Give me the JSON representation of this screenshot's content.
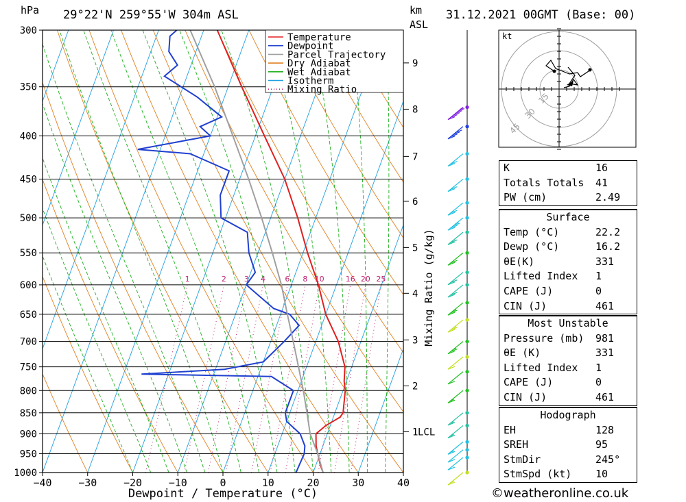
{
  "header": {
    "pressure_unit": "hPa",
    "location": "29°22'N 259°55'W 304m ASL",
    "km_label": "km",
    "asl_label": "ASL",
    "datetime": "31.12.2021 00GMT (Base: 00)"
  },
  "chart_data": {
    "type": "line",
    "title": "29°22'N 259°55'W 304m ASL",
    "xlabel": "Dewpoint / Temperature (°C)",
    "ylabel": "hPa",
    "right_axis_label": "Mixing Ratio (g/kg)",
    "xlim": [
      -40,
      40
    ],
    "ylim": [
      1000,
      300
    ],
    "y_scale": "log (skew-T)",
    "x_ticks": [
      "−40",
      "−30",
      "−20",
      "−10",
      "0",
      "10",
      "20",
      "30",
      "40"
    ],
    "pressure_levels": [
      "300",
      "350",
      "400",
      "450",
      "500",
      "550",
      "600",
      "650",
      "700",
      "750",
      "800",
      "850",
      "900",
      "950",
      "1000"
    ],
    "height_km": [
      {
        "label": "9",
        "p": 328
      },
      {
        "label": "8",
        "p": 372
      },
      {
        "label": "7",
        "p": 423
      },
      {
        "label": "6",
        "p": 478
      },
      {
        "label": "5",
        "p": 542
      },
      {
        "label": "4",
        "p": 614
      },
      {
        "label": "3",
        "p": 697
      },
      {
        "label": "2",
        "p": 790
      },
      {
        "label": "1",
        "p": 895
      }
    ],
    "lcl_label": "LCL",
    "lcl_p": 895,
    "mixing_ratio_labels": [
      "1",
      "2",
      "3",
      "4",
      "6",
      "8",
      "10",
      "16",
      "20",
      "25"
    ],
    "legend": [
      "Temperature",
      "Dewpoint",
      "Parcel Trajectory",
      "Dry Adiabat",
      "Wet Adiabat",
      "Isotherm",
      "Mixing Ratio"
    ],
    "legend_placement": "top-right",
    "colors": {
      "temperature": "#e02020",
      "dewpoint": "#2040d0",
      "parcel": "#a0a0a0",
      "dry_adiabat": "#e08020",
      "wet_adiabat": "#20b020",
      "isotherm": "#20a0e0",
      "mixing_ratio": "#c02070"
    },
    "series": [
      {
        "name": "Temperature",
        "points": [
          [
            1000,
            22.2
          ],
          [
            980,
            21
          ],
          [
            950,
            19.5
          ],
          [
            930,
            18.5
          ],
          [
            900,
            17.5
          ],
          [
            880,
            19
          ],
          [
            860,
            21.5
          ],
          [
            850,
            21.8
          ],
          [
            800,
            20.5
          ],
          [
            780,
            19.5
          ],
          [
            750,
            18.5
          ],
          [
            700,
            15
          ],
          [
            650,
            10
          ],
          [
            600,
            6
          ],
          [
            550,
            1
          ],
          [
            500,
            -4
          ],
          [
            450,
            -10
          ],
          [
            400,
            -18
          ],
          [
            350,
            -27
          ],
          [
            300,
            -37
          ]
        ]
      },
      {
        "name": "Dewpoint",
        "points": [
          [
            1000,
            16.2
          ],
          [
            950,
            16.5
          ],
          [
            930,
            16
          ],
          [
            900,
            14
          ],
          [
            870,
            10
          ],
          [
            850,
            9
          ],
          [
            830,
            9
          ],
          [
            800,
            9
          ],
          [
            770,
            3
          ],
          [
            765,
            -26
          ],
          [
            755,
            -8
          ],
          [
            740,
            0
          ],
          [
            700,
            3
          ],
          [
            670,
            5
          ],
          [
            650,
            2
          ],
          [
            640,
            -2
          ],
          [
            600,
            -10
          ],
          [
            580,
            -9
          ],
          [
            550,
            -12
          ],
          [
            520,
            -14
          ],
          [
            500,
            -21
          ],
          [
            470,
            -23
          ],
          [
            440,
            -23
          ],
          [
            420,
            -33
          ],
          [
            415,
            -45
          ],
          [
            400,
            -30
          ],
          [
            390,
            -33
          ],
          [
            380,
            -29
          ],
          [
            360,
            -36
          ],
          [
            340,
            -45
          ],
          [
            330,
            -43
          ],
          [
            318,
            -46
          ],
          [
            305,
            -47
          ],
          [
            300,
            -46
          ]
        ]
      },
      {
        "name": "Parcel Trajectory",
        "points": [
          [
            1000,
            22.2
          ],
          [
            950,
            19.5
          ],
          [
            900,
            16.2
          ],
          [
            850,
            13.8
          ],
          [
            800,
            11.2
          ],
          [
            750,
            8.2
          ],
          [
            700,
            5
          ],
          [
            650,
            1.5
          ],
          [
            600,
            -2.2
          ],
          [
            550,
            -6.8
          ],
          [
            500,
            -12
          ],
          [
            450,
            -18
          ],
          [
            400,
            -25
          ],
          [
            350,
            -33
          ],
          [
            300,
            -43
          ]
        ]
      }
    ],
    "wind_barbs": [
      {
        "p": 1000,
        "color": "#c0e020",
        "speed_kt": 5
      },
      {
        "p": 960,
        "color": "#20c0e0",
        "speed_kt": 10
      },
      {
        "p": 940,
        "color": "#20c0e0",
        "speed_kt": 10
      },
      {
        "p": 920,
        "color": "#20c0e0",
        "speed_kt": 5
      },
      {
        "p": 880,
        "color": "#20c0a0",
        "speed_kt": 5
      },
      {
        "p": 850,
        "color": "#20c0a0",
        "speed_kt": 5
      },
      {
        "p": 800,
        "color": "#20c020",
        "speed_kt": 5
      },
      {
        "p": 760,
        "color": "#20c020",
        "speed_kt": 10
      },
      {
        "p": 730,
        "color": "#c0e020",
        "speed_kt": 10
      },
      {
        "p": 700,
        "color": "#20c020",
        "speed_kt": 15
      },
      {
        "p": 660,
        "color": "#c0e020",
        "speed_kt": 15
      },
      {
        "p": 630,
        "color": "#20c020",
        "speed_kt": 15
      },
      {
        "p": 600,
        "color": "#20c0a0",
        "speed_kt": 20
      },
      {
        "p": 580,
        "color": "#20c0a0",
        "speed_kt": 20
      },
      {
        "p": 550,
        "color": "#20c020",
        "speed_kt": 20
      },
      {
        "p": 520,
        "color": "#20c0a0",
        "speed_kt": 20
      },
      {
        "p": 500,
        "color": "#20c0e0",
        "speed_kt": 25
      },
      {
        "p": 480,
        "color": "#20c0e0",
        "speed_kt": 20
      },
      {
        "p": 450,
        "color": "#20c0e0",
        "speed_kt": 20
      },
      {
        "p": 420,
        "color": "#20c0e0",
        "speed_kt": 20
      },
      {
        "p": 390,
        "color": "#2040e0",
        "speed_kt": 40
      },
      {
        "p": 370,
        "color": "#8020e0",
        "speed_kt": 45
      }
    ]
  },
  "hodograph": {
    "unit_label": "kt",
    "ring_labels": [
      "15",
      "30",
      "45"
    ]
  },
  "indices": [
    {
      "label": "K",
      "value": "16"
    },
    {
      "label": "Totals Totals",
      "value": "41"
    },
    {
      "label": "PW (cm)",
      "value": "2.49"
    }
  ],
  "surface": {
    "title": "Surface",
    "rows": [
      {
        "label": "Temp (°C)",
        "value": "22.2"
      },
      {
        "label": "Dewp (°C)",
        "value": "16.2"
      },
      {
        "label": "θE(K)",
        "value": "331"
      },
      {
        "label": "Lifted Index",
        "value": "1"
      },
      {
        "label": "CAPE (J)",
        "value": "0"
      },
      {
        "label": "CIN (J)",
        "value": "461"
      }
    ]
  },
  "most_unstable": {
    "title": "Most Unstable",
    "rows": [
      {
        "label": "Pressure (mb)",
        "value": "981"
      },
      {
        "label": "θE (K)",
        "value": "331"
      },
      {
        "label": "Lifted Index",
        "value": "1"
      },
      {
        "label": "CAPE (J)",
        "value": "0"
      },
      {
        "label": "CIN (J)",
        "value": "461"
      }
    ]
  },
  "hodograph_stats": {
    "title": "Hodograph",
    "rows": [
      {
        "label": "EH",
        "value": "128"
      },
      {
        "label": "SREH",
        "value": "95"
      },
      {
        "label": "StmDir",
        "value": "245°"
      },
      {
        "label": "StmSpd (kt)",
        "value": "10"
      }
    ]
  },
  "credit": "©weatheronline.co.uk"
}
